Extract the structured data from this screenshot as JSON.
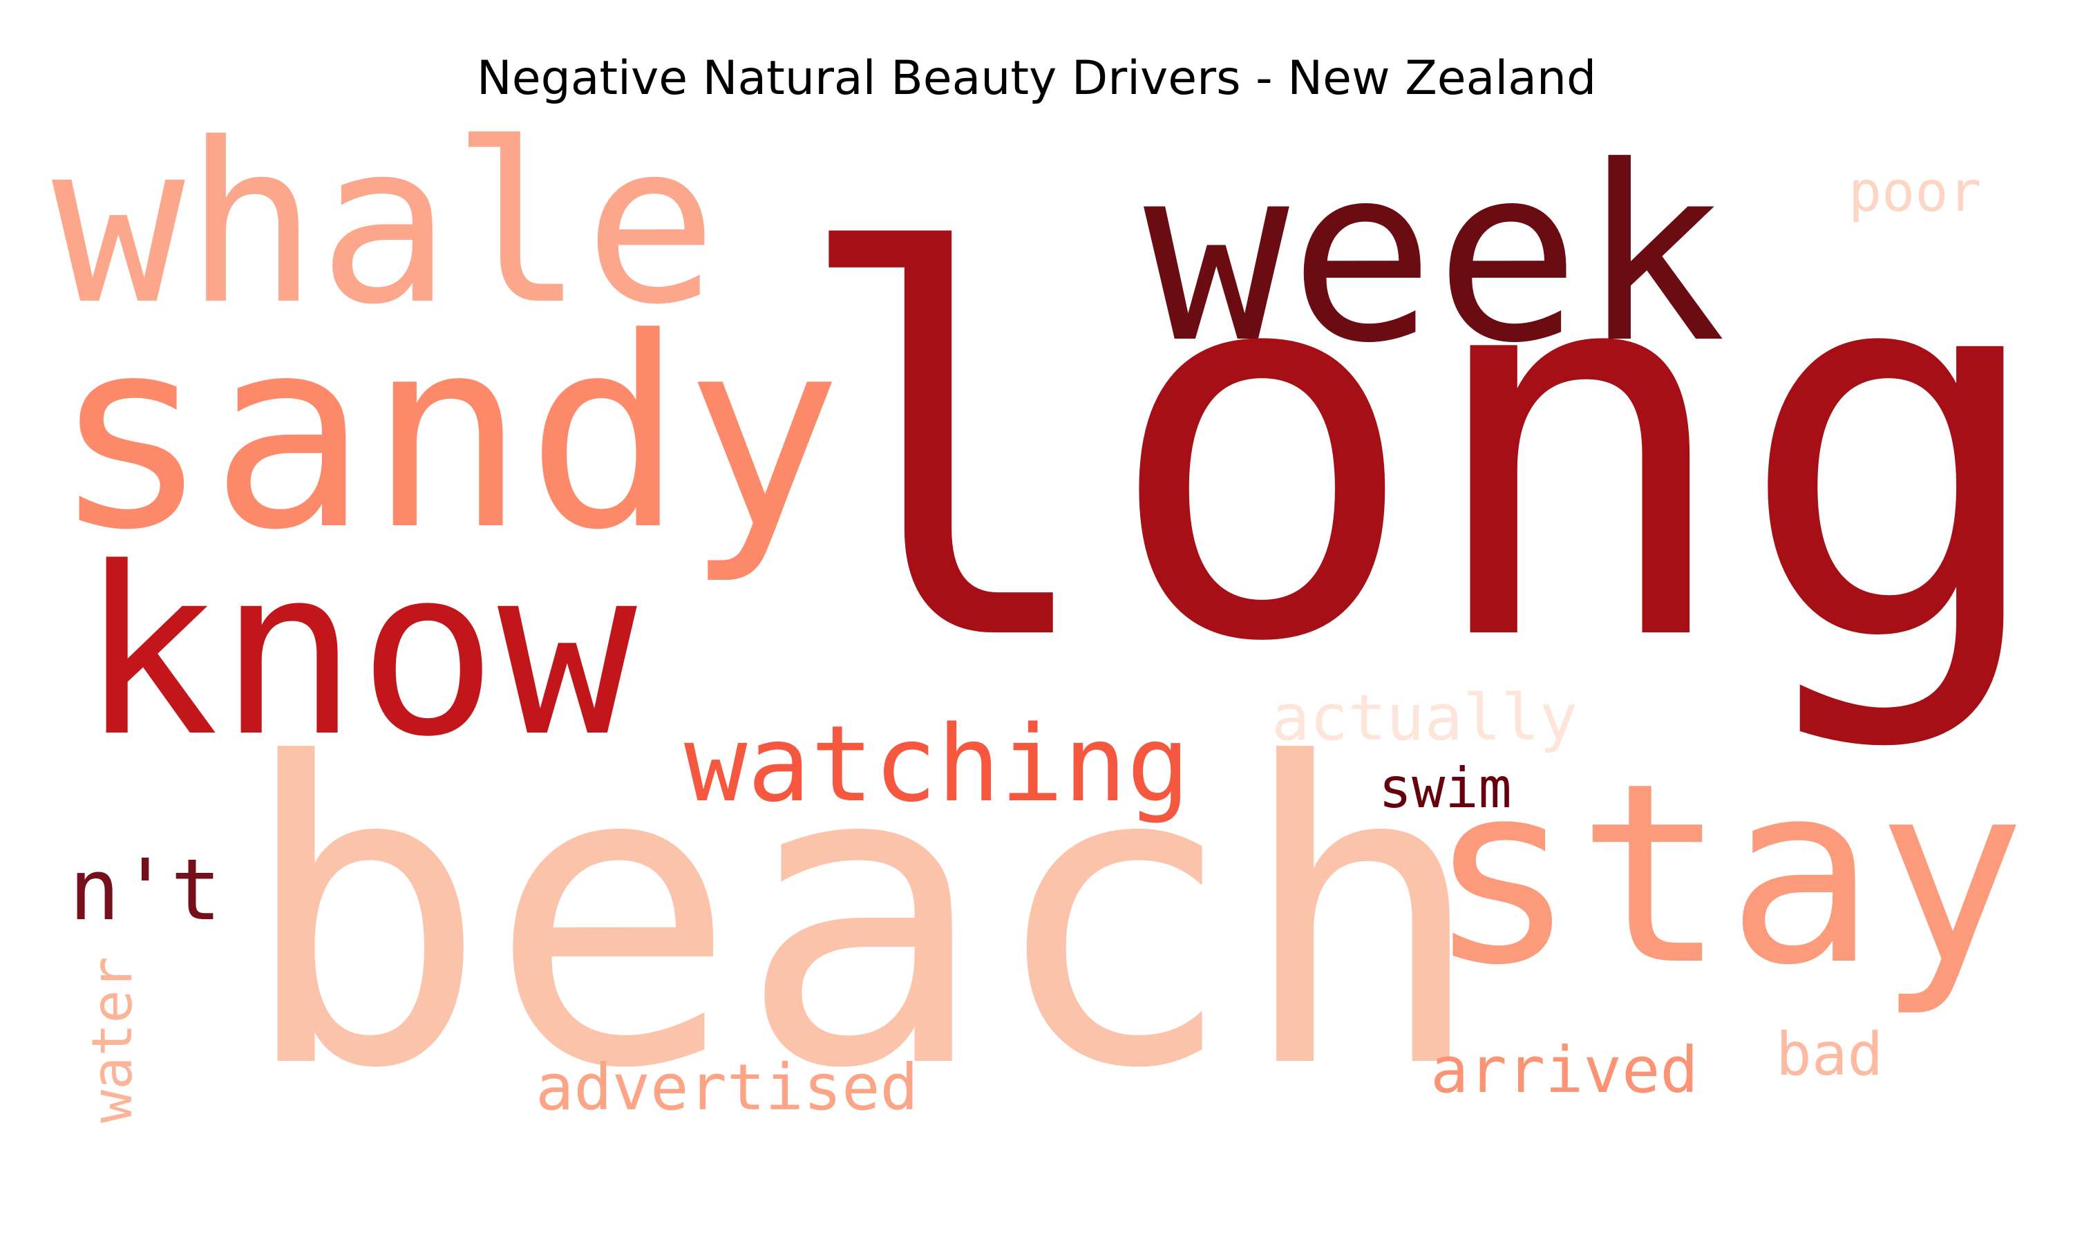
{
  "chart_data": {
    "type": "wordcloud",
    "title": "Negative Natural Beauty Drivers - New Zealand",
    "colormap": "Reds",
    "words": [
      {
        "text": "long",
        "weight": 1.0,
        "color": "#a50f15",
        "rotated": false
      },
      {
        "text": "beach",
        "weight": 0.9,
        "color": "#fcc3ab",
        "rotated": false
      },
      {
        "text": "sandy",
        "weight": 0.55,
        "color": "#fc8a6a",
        "rotated": false
      },
      {
        "text": "stay",
        "weight": 0.55,
        "color": "#fc9b7c",
        "rotated": false
      },
      {
        "text": "week",
        "weight": 0.5,
        "color": "#6b0b12",
        "rotated": false
      },
      {
        "text": "know",
        "weight": 0.5,
        "color": "#c3161b",
        "rotated": false
      },
      {
        "text": "whale",
        "weight": 0.48,
        "color": "#fca78b",
        "rotated": false
      },
      {
        "text": "watching",
        "weight": 0.22,
        "color": "#f6573f",
        "rotated": false
      },
      {
        "text": "n't",
        "weight": 0.17,
        "color": "#75101a",
        "rotated": false
      },
      {
        "text": "actually",
        "weight": 0.13,
        "color": "#fee5d9",
        "rotated": false
      },
      {
        "text": "advertised",
        "weight": 0.13,
        "color": "#fca486",
        "rotated": false
      },
      {
        "text": "arrived",
        "weight": 0.13,
        "color": "#fb9474",
        "rotated": false
      },
      {
        "text": "bad",
        "weight": 0.12,
        "color": "#fcbba1",
        "rotated": false
      },
      {
        "text": "water",
        "weight": 0.11,
        "color": "#fcb499",
        "rotated": true
      },
      {
        "text": "swim",
        "weight": 0.1,
        "color": "#67000d",
        "rotated": false
      },
      {
        "text": "poor",
        "weight": 0.1,
        "color": "#fdd5c4",
        "rotated": false
      }
    ]
  }
}
